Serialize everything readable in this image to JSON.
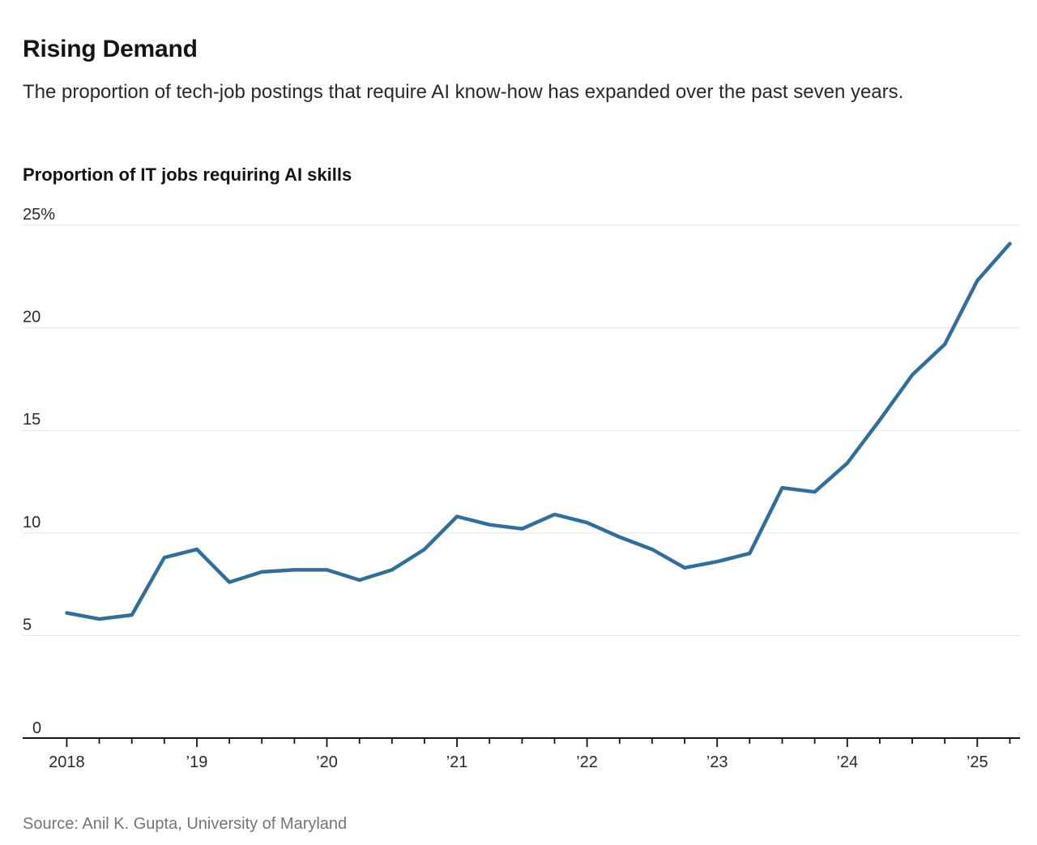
{
  "header": {
    "title": "Rising Demand",
    "subtitle": "The proportion of tech-job postings that require AI know-how has expanded over the past seven years."
  },
  "chart": {
    "label": "Proportion of IT jobs requiring AI skills"
  },
  "chart_data": {
    "type": "line",
    "series_name": "Proportion of IT jobs requiring AI skills",
    "unit": "%",
    "x": [
      "2018 Q1",
      "2018 Q2",
      "2018 Q3",
      "2018 Q4",
      "2019 Q1",
      "2019 Q2",
      "2019 Q3",
      "2019 Q4",
      "2020 Q1",
      "2020 Q2",
      "2020 Q3",
      "2020 Q4",
      "2021 Q1",
      "2021 Q2",
      "2021 Q3",
      "2021 Q4",
      "2022 Q1",
      "2022 Q2",
      "2022 Q3",
      "2022 Q4",
      "2023 Q1",
      "2023 Q2",
      "2023 Q3",
      "2023 Q4",
      "2024 Q1",
      "2024 Q2",
      "2024 Q3",
      "2024 Q4",
      "2025 Q1",
      "2025 Q2"
    ],
    "values": [
      6.1,
      5.8,
      6.0,
      8.8,
      9.2,
      7.6,
      8.1,
      8.2,
      8.2,
      7.7,
      8.2,
      9.2,
      10.8,
      10.4,
      10.2,
      10.9,
      10.5,
      9.8,
      9.2,
      8.3,
      8.6,
      9.0,
      12.2,
      12.0,
      13.4,
      15.5,
      17.7,
      19.2,
      22.3,
      24.1
    ],
    "xtick_labels": [
      "2018",
      "’19",
      "’20",
      "’21",
      "’22",
      "’23",
      "’24",
      "’25"
    ],
    "ytick_values": [
      0,
      5,
      10,
      15,
      20,
      25
    ],
    "ytick_labels": [
      "0",
      "5",
      "10",
      "15",
      "20",
      "25%"
    ],
    "ylim": [
      0,
      25
    ],
    "grid": "horizontal",
    "legend": "none",
    "line_color": "#2f6f9c",
    "axis_color": "#141414",
    "gridline_color": "#e4e4e4"
  },
  "source": {
    "text": "Source: Anil K. Gupta, University of Maryland"
  }
}
